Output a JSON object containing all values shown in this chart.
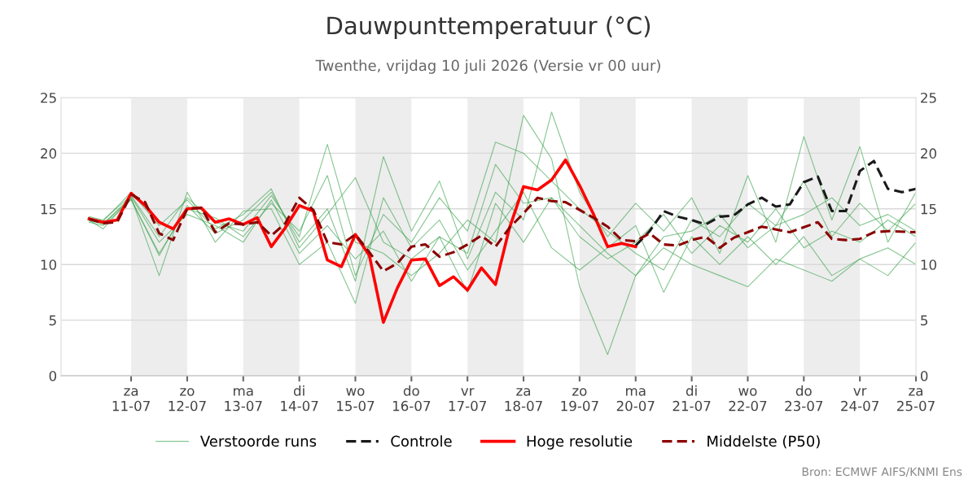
{
  "chart_data": {
    "type": "line",
    "title": "Dauwpunttemperatuur (°C)",
    "subtitle": "Twenthe, vrijdag 10 juli 2026 (Versie vr 00 uur)",
    "annotations": [
      "Bron: ECMWF AIFS/KNMI Ens"
    ],
    "x": [
      "2026-07-10T06:00",
      "2026-07-10T12:00",
      "2026-07-11T00:00",
      "2026-07-11T12:00",
      "2026-07-12T00:00",
      "2026-07-12T12:00",
      "2026-07-13T00:00",
      "2026-07-13T12:00",
      "2026-07-14T00:00",
      "2026-07-14T12:00",
      "2026-07-15T00:00",
      "2026-07-15T12:00",
      "2026-07-16T00:00",
      "2026-07-16T12:00",
      "2026-07-17T00:00",
      "2026-07-17T12:00",
      "2026-07-18T00:00",
      "2026-07-18T12:00",
      "2026-07-19T00:00",
      "2026-07-19T12:00",
      "2026-07-20T00:00",
      "2026-07-20T12:00",
      "2026-07-21T00:00",
      "2026-07-21T12:00",
      "2026-07-22T00:00",
      "2026-07-22T12:00",
      "2026-07-23T00:00",
      "2026-07-23T12:00",
      "2026-07-24T00:00",
      "2026-07-24T12:00",
      "2026-07-25T00:00"
    ],
    "series": [
      {
        "name": "Verstoorde runs",
        "color": "#35a048",
        "values": [
          14.2,
          13.9,
          16.5,
          13.5,
          15.8,
          13.2,
          14.5,
          16.8,
          11.5,
          14.5,
          17.8,
          12.0,
          10.5,
          12.5,
          11.0,
          19.0,
          15.5,
          16.0,
          12.5,
          10.5,
          12.0,
          14.5,
          11.0,
          13.5,
          12.0,
          15.0,
          11.5,
          13.0,
          12.0,
          14.0,
          12.5
        ]
      },
      {
        "color": "#35a048",
        "values": [
          13.8,
          13.5,
          15.8,
          11.0,
          15.0,
          14.2,
          12.5,
          15.5,
          13.0,
          18.0,
          9.0,
          14.5,
          12.0,
          16.0,
          13.0,
          21.0,
          20.0,
          17.5,
          15.0,
          13.0,
          11.0,
          9.5,
          14.0,
          12.5,
          15.5,
          13.5,
          17.5,
          12.5,
          15.5,
          13.0,
          15.5
        ]
      },
      {
        "color": "#35a048",
        "values": [
          14.0,
          13.2,
          16.0,
          9.0,
          16.5,
          12.0,
          14.8,
          15.0,
          10.0,
          12.0,
          6.5,
          16.0,
          11.5,
          14.0,
          9.5,
          13.0,
          16.5,
          11.5,
          9.5,
          11.5,
          13.5,
          7.5,
          12.5,
          10.0,
          12.5,
          10.0,
          12.5,
          9.0,
          10.5,
          11.5,
          10.0
        ]
      },
      {
        "color": "#35a048",
        "values": [
          14.3,
          14.0,
          16.2,
          12.5,
          16.0,
          13.8,
          13.0,
          16.2,
          12.5,
          20.8,
          12.0,
          11.0,
          9.0,
          11.0,
          14.0,
          12.0,
          23.4,
          19.5,
          8.0,
          1.9,
          9.0,
          12.5,
          13.0,
          14.5,
          11.5,
          13.5,
          14.5,
          16.0,
          13.5,
          14.5,
          13.0
        ]
      },
      {
        "color": "#35a048",
        "values": [
          13.9,
          13.7,
          15.9,
          10.8,
          15.3,
          12.8,
          14.0,
          16.5,
          12.0,
          15.0,
          8.5,
          19.7,
          13.0,
          17.5,
          10.5,
          16.5,
          14.0,
          23.7,
          16.5,
          12.5,
          15.5,
          13.0,
          16.0,
          11.0,
          18.0,
          12.0,
          21.5,
          14.0,
          20.6,
          12.0,
          16.5
        ]
      },
      {
        "color": "#35a048",
        "values": [
          14.1,
          13.6,
          16.1,
          12.0,
          14.5,
          13.5,
          12.0,
          15.8,
          11.0,
          13.5,
          10.5,
          13.0,
          8.5,
          12.5,
          7.5,
          15.5,
          12.0,
          16.0,
          13.5,
          11.0,
          9.0,
          11.5,
          10.0,
          9.0,
          8.0,
          10.5,
          9.5,
          8.5,
          10.5,
          9.0,
          12.0
        ]
      },
      {
        "name": "Controle",
        "color": "#1a1a1a",
        "line_style": "dashed",
        "x": [
          "2026-07-20T00:00",
          "2026-07-20T06:00",
          "2026-07-20T12:00",
          "2026-07-20T18:00",
          "2026-07-21T00:00",
          "2026-07-21T06:00",
          "2026-07-21T12:00",
          "2026-07-21T18:00",
          "2026-07-22T00:00",
          "2026-07-22T06:00",
          "2026-07-22T12:00",
          "2026-07-22T18:00",
          "2026-07-23T00:00",
          "2026-07-23T06:00",
          "2026-07-23T12:00",
          "2026-07-23T18:00",
          "2026-07-24T00:00",
          "2026-07-24T06:00",
          "2026-07-24T12:00",
          "2026-07-24T18:00",
          "2026-07-25T00:00"
        ],
        "values": [
          11.7,
          13.0,
          14.8,
          14.3,
          14.0,
          13.6,
          14.3,
          14.4,
          15.4,
          16.0,
          15.2,
          15.4,
          17.4,
          17.9,
          14.8,
          14.8,
          18.4,
          19.3,
          16.8,
          16.5,
          16.8
        ]
      },
      {
        "name": "Hoge resolutie",
        "color": "#ff0000",
        "x": [
          "2026-07-10T06:00",
          "2026-07-10T12:00",
          "2026-07-10T18:00",
          "2026-07-11T00:00",
          "2026-07-11T06:00",
          "2026-07-11T12:00",
          "2026-07-11T18:00",
          "2026-07-12T00:00",
          "2026-07-12T06:00",
          "2026-07-12T12:00",
          "2026-07-12T18:00",
          "2026-07-13T00:00",
          "2026-07-13T06:00",
          "2026-07-13T12:00",
          "2026-07-13T18:00",
          "2026-07-14T00:00",
          "2026-07-14T06:00",
          "2026-07-14T12:00",
          "2026-07-14T18:00",
          "2026-07-15T00:00",
          "2026-07-15T06:00",
          "2026-07-15T12:00",
          "2026-07-15T18:00",
          "2026-07-16T00:00",
          "2026-07-16T06:00",
          "2026-07-16T12:00",
          "2026-07-16T18:00",
          "2026-07-17T00:00",
          "2026-07-17T06:00",
          "2026-07-17T12:00",
          "2026-07-17T18:00",
          "2026-07-18T00:00",
          "2026-07-18T06:00",
          "2026-07-18T12:00",
          "2026-07-18T18:00",
          "2026-07-19T00:00",
          "2026-07-19T06:00",
          "2026-07-19T12:00",
          "2026-07-19T18:00",
          "2026-07-20T00:00"
        ],
        "values": [
          14.1,
          13.8,
          14.0,
          16.4,
          15.3,
          13.8,
          13.2,
          15.0,
          15.1,
          13.8,
          14.1,
          13.6,
          14.2,
          11.6,
          13.3,
          15.3,
          14.8,
          10.4,
          9.8,
          12.7,
          10.8,
          4.8,
          7.9,
          10.4,
          10.5,
          8.1,
          8.9,
          7.7,
          9.7,
          8.2,
          13.3,
          17.0,
          16.7,
          17.6,
          19.4,
          17.1,
          14.5,
          11.6,
          11.9,
          11.6
        ]
      },
      {
        "name": "Middelste (P50)",
        "color": "#8b0000",
        "line_style": "dashed",
        "x": [
          "2026-07-10T06:00",
          "2026-07-10T12:00",
          "2026-07-10T18:00",
          "2026-07-11T00:00",
          "2026-07-11T06:00",
          "2026-07-11T12:00",
          "2026-07-11T18:00",
          "2026-07-12T00:00",
          "2026-07-12T06:00",
          "2026-07-12T12:00",
          "2026-07-12T18:00",
          "2026-07-13T00:00",
          "2026-07-13T06:00",
          "2026-07-13T12:00",
          "2026-07-13T18:00",
          "2026-07-14T00:00",
          "2026-07-14T06:00",
          "2026-07-14T12:00",
          "2026-07-14T18:00",
          "2026-07-15T00:00",
          "2026-07-15T06:00",
          "2026-07-15T12:00",
          "2026-07-15T18:00",
          "2026-07-16T00:00",
          "2026-07-16T06:00",
          "2026-07-16T12:00",
          "2026-07-16T18:00",
          "2026-07-17T00:00",
          "2026-07-17T06:00",
          "2026-07-17T12:00",
          "2026-07-17T18:00",
          "2026-07-18T00:00",
          "2026-07-18T06:00",
          "2026-07-18T12:00",
          "2026-07-18T18:00",
          "2026-07-19T00:00",
          "2026-07-19T06:00",
          "2026-07-19T12:00",
          "2026-07-19T18:00",
          "2026-07-20T00:00",
          "2026-07-20T06:00",
          "2026-07-20T12:00",
          "2026-07-20T18:00",
          "2026-07-21T00:00",
          "2026-07-21T06:00",
          "2026-07-21T12:00",
          "2026-07-21T18:00",
          "2026-07-22T06:00",
          "2026-07-22T18:00",
          "2026-07-23T06:00",
          "2026-07-23T12:00",
          "2026-07-23T18:00",
          "2026-07-24T00:00",
          "2026-07-24T06:00",
          "2026-07-24T12:00",
          "2026-07-25T00:00"
        ],
        "values": [
          14.1,
          13.7,
          13.8,
          16.3,
          15.6,
          12.8,
          12.2,
          15.0,
          15.1,
          12.9,
          13.7,
          13.6,
          13.8,
          12.6,
          13.7,
          16.0,
          14.9,
          12.0,
          11.8,
          12.7,
          11.1,
          9.4,
          10.1,
          11.6,
          11.8,
          10.7,
          11.1,
          11.8,
          12.6,
          11.6,
          13.3,
          14.6,
          16.0,
          15.7,
          15.6,
          14.9,
          14.2,
          13.4,
          12.2,
          12.1,
          12.8,
          11.8,
          11.7,
          12.2,
          12.5,
          11.5,
          12.4,
          13.4,
          12.9,
          13.8,
          12.3,
          12.2,
          12.3,
          12.9,
          13.0,
          12.9
        ]
      }
    ],
    "xlim": [
      "2026-07-09T18:00",
      "2026-07-25T00:00"
    ],
    "xticks": [
      {
        "value": "2026-07-11",
        "label": "za\n11-07"
      },
      {
        "value": "2026-07-12",
        "label": "zo\n12-07"
      },
      {
        "value": "2026-07-13",
        "label": "ma\n13-07"
      },
      {
        "value": "2026-07-14",
        "label": "di\n14-07"
      },
      {
        "value": "2026-07-15",
        "label": "wo\n15-07"
      },
      {
        "value": "2026-07-16",
        "label": "do\n16-07"
      },
      {
        "value": "2026-07-17",
        "label": "vr\n17-07"
      },
      {
        "value": "2026-07-18",
        "label": "za\n18-07"
      },
      {
        "value": "2026-07-19",
        "label": "zo\n19-07"
      },
      {
        "value": "2026-07-20",
        "label": "ma\n20-07"
      },
      {
        "value": "2026-07-21",
        "label": "di\n21-07"
      },
      {
        "value": "2026-07-22",
        "label": "wo\n22-07"
      },
      {
        "value": "2026-07-23",
        "label": "do\n23-07"
      },
      {
        "value": "2026-07-24",
        "label": "vr\n24-07"
      },
      {
        "value": "2026-07-25",
        "label": "za\n25-07"
      }
    ],
    "ylim": [
      0,
      25
    ],
    "yticks": [
      0,
      5,
      10,
      15,
      20,
      25
    ],
    "y2lim": [
      0,
      25
    ],
    "y2ticks": [
      0,
      5,
      10,
      15,
      20,
      25
    ],
    "bands": [
      {
        "axis": "x",
        "from": "2026-07-11",
        "to": "2026-07-12",
        "color": "#ededed"
      },
      {
        "axis": "x",
        "from": "2026-07-13",
        "to": "2026-07-14",
        "color": "#ededed"
      },
      {
        "axis": "x",
        "from": "2026-07-15",
        "to": "2026-07-16",
        "color": "#ededed"
      },
      {
        "axis": "x",
        "from": "2026-07-17",
        "to": "2026-07-18",
        "color": "#ededed"
      },
      {
        "axis": "x",
        "from": "2026-07-19",
        "to": "2026-07-20",
        "color": "#ededed"
      },
      {
        "axis": "x",
        "from": "2026-07-21",
        "to": "2026-07-22",
        "color": "#ededed"
      },
      {
        "axis": "x",
        "from": "2026-07-23",
        "to": "2026-07-24",
        "color": "#ededed"
      }
    ],
    "grid": "y",
    "legend": "bottom",
    "marker": "none",
    "line_style": "solid"
  }
}
